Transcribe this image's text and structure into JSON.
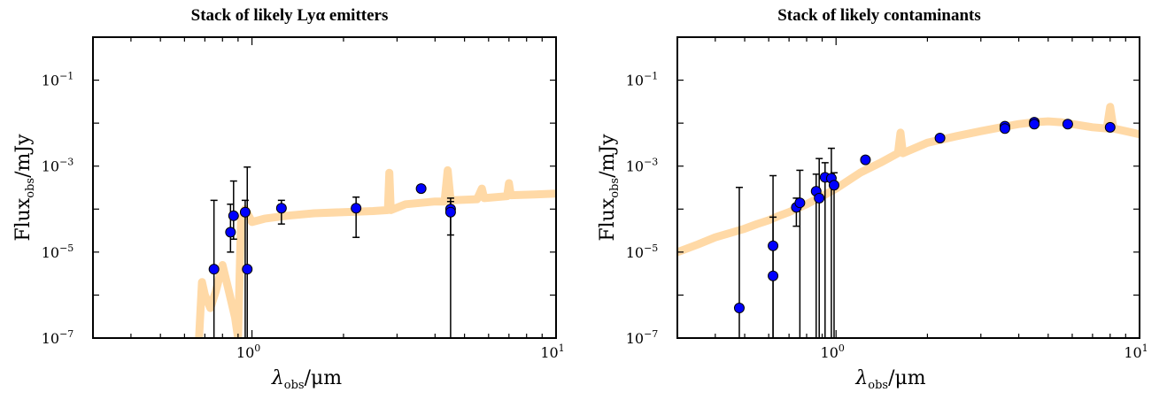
{
  "chart_data": [
    {
      "type": "scatter",
      "title": "Stack of likely Lyα emitters",
      "xlabel": {
        "main": "λ",
        "sub": "obs",
        "tail": "/μm"
      },
      "ylabel": {
        "main": "Flux",
        "sub": "obs",
        "tail": "/mJy"
      },
      "xscale": "log",
      "yscale": "log",
      "xlim": [
        0.3,
        10
      ],
      "ylim": [
        1e-07,
        1
      ],
      "xticks": [
        {
          "value": 1,
          "base": "10",
          "exp": "0"
        },
        {
          "value": 10,
          "base": "10",
          "exp": "1"
        }
      ],
      "yticks": [
        {
          "value": 1e-07,
          "base": "10",
          "exp": "−7"
        },
        {
          "value": 1e-05,
          "base": "10",
          "exp": "−5"
        },
        {
          "value": 0.001,
          "base": "10",
          "exp": "−3"
        },
        {
          "value": 0.1,
          "base": "10",
          "exp": "−1"
        }
      ],
      "series": [
        {
          "kind": "errorbar",
          "color": "#0000ff",
          "points": [
            {
              "x": 0.75,
              "y": 4e-06,
              "ylo": 1e-07,
              "yhi": 0.00016
            },
            {
              "x": 0.85,
              "y": 2.9e-05,
              "ylo": 1e-05,
              "yhi": 0.00013
            },
            {
              "x": 0.87,
              "y": 7e-05,
              "ylo": 2e-05,
              "yhi": 0.00045
            },
            {
              "x": 0.95,
              "y": 8.5e-05,
              "ylo": 1e-07,
              "yhi": 0.00016
            },
            {
              "x": 0.965,
              "y": 4e-06,
              "ylo": 1e-07,
              "yhi": 0.00095
            },
            {
              "x": 1.25,
              "y": 0.000105,
              "ylo": 4.5e-05,
              "yhi": 0.00016
            },
            {
              "x": 2.2,
              "y": 0.000105,
              "ylo": 2.2e-05,
              "yhi": 0.00019
            },
            {
              "x": 3.6,
              "y": 0.0003,
              "ylo": 0.00025,
              "yhi": 0.00036
            },
            {
              "x": 4.5,
              "y": 0.0001,
              "ylo": 1e-07,
              "yhi": 0.00018
            },
            {
              "x": 4.5,
              "y": 8.5e-05,
              "ylo": 2.5e-05,
              "yhi": 0.00015
            }
          ]
        },
        {
          "kind": "model-band",
          "color": "#ffd9a6",
          "points": [
            [
              0.67,
              1e-07
            ],
            [
              0.685,
              2e-06
            ],
            [
              0.7,
              1e-06
            ],
            [
              0.73,
              5e-07
            ],
            [
              0.76,
              1.2e-06
            ],
            [
              0.8,
              5e-06
            ],
            [
              0.84,
              1.2e-06
            ],
            [
              0.88,
              3e-07
            ],
            [
              0.9,
              1e-07
            ],
            [
              0.92,
              5e-05
            ],
            [
              0.95,
              0.0001
            ],
            [
              1.0,
              5e-05
            ],
            [
              1.1,
              6e-05
            ],
            [
              1.3,
              7e-05
            ],
            [
              1.6,
              8e-05
            ],
            [
              2.0,
              8.5e-05
            ],
            [
              2.5,
              9e-05
            ],
            [
              2.8,
              9.5e-05
            ],
            [
              2.83,
              0.0007
            ],
            [
              2.86,
              9.5e-05
            ],
            [
              3.2,
              0.00013
            ],
            [
              3.6,
              0.00014
            ],
            [
              4.0,
              0.00015
            ],
            [
              4.3,
              0.00015
            ],
            [
              4.4,
              0.0008
            ],
            [
              4.5,
              0.00016
            ],
            [
              5.5,
              0.00017
            ],
            [
              5.7,
              0.0003
            ],
            [
              5.8,
              0.00018
            ],
            [
              6.9,
              0.0002
            ],
            [
              7.0,
              0.0004
            ],
            [
              7.1,
              0.00021
            ],
            [
              8.5,
              0.00022
            ],
            [
              10.0,
              0.00023
            ]
          ]
        }
      ]
    },
    {
      "type": "scatter",
      "title": "Stack of likely contaminants",
      "xlabel": {
        "main": "λ",
        "sub": "obs",
        "tail": "/μm"
      },
      "ylabel": {
        "main": "Flux",
        "sub": "obs",
        "tail": "/mJy"
      },
      "xscale": "log",
      "yscale": "log",
      "xlim": [
        0.3,
        10
      ],
      "ylim": [
        1e-07,
        1
      ],
      "xticks": [
        {
          "value": 1,
          "base": "10",
          "exp": "0"
        },
        {
          "value": 10,
          "base": "10",
          "exp": "1"
        }
      ],
      "yticks": [
        {
          "value": 1e-07,
          "base": "10",
          "exp": "−7"
        },
        {
          "value": 1e-05,
          "base": "10",
          "exp": "−5"
        },
        {
          "value": 0.001,
          "base": "10",
          "exp": "−3"
        },
        {
          "value": 0.1,
          "base": "10",
          "exp": "−1"
        }
      ],
      "series": [
        {
          "kind": "errorbar",
          "color": "#0000ff",
          "points": [
            {
              "x": 0.48,
              "y": 5e-07,
              "ylo": 1e-07,
              "yhi": 0.00032
            },
            {
              "x": 0.62,
              "y": 2.8e-06,
              "ylo": 1e-07,
              "yhi": 0.0006
            },
            {
              "x": 0.62,
              "y": 1.4e-05,
              "ylo": 1e-07,
              "yhi": 6.5e-05
            },
            {
              "x": 0.74,
              "y": 0.00011,
              "ylo": 4e-05,
              "yhi": 0.00018
            },
            {
              "x": 0.76,
              "y": 0.00014,
              "ylo": 1e-07,
              "yhi": 0.0008
            },
            {
              "x": 0.86,
              "y": 0.00026,
              "ylo": 1e-07,
              "yhi": 0.00065
            },
            {
              "x": 0.88,
              "y": 0.00018,
              "ylo": 1e-07,
              "yhi": 0.0015
            },
            {
              "x": 0.92,
              "y": 0.00055,
              "ylo": 1e-07,
              "yhi": 0.0012
            },
            {
              "x": 0.965,
              "y": 0.00052,
              "ylo": 1e-07,
              "yhi": 0.0026
            },
            {
              "x": 0.985,
              "y": 0.00036,
              "ylo": 1e-07,
              "yhi": 0.0007
            },
            {
              "x": 1.25,
              "y": 0.0014,
              "ylo": 0.0012,
              "yhi": 0.0016
            },
            {
              "x": 2.2,
              "y": 0.0045,
              "ylo": 0.004,
              "yhi": 0.005
            },
            {
              "x": 3.6,
              "y": 0.0085,
              "ylo": 0.0075,
              "yhi": 0.0095
            },
            {
              "x": 3.6,
              "y": 0.0075,
              "ylo": 0.0065,
              "yhi": 0.0085
            },
            {
              "x": 4.5,
              "y": 0.0105,
              "ylo": 0.0095,
              "yhi": 0.0115
            },
            {
              "x": 4.5,
              "y": 0.0095,
              "ylo": 0.0085,
              "yhi": 0.0105
            },
            {
              "x": 5.8,
              "y": 0.0095,
              "ylo": 0.0085,
              "yhi": 0.0105
            },
            {
              "x": 8.0,
              "y": 0.008,
              "ylo": 0.007,
              "yhi": 0.009
            }
          ]
        },
        {
          "kind": "model-band",
          "color": "#ffd9a6",
          "points": [
            [
              0.3,
              1e-05
            ],
            [
              0.35,
              1.5e-05
            ],
            [
              0.4,
              2.2e-05
            ],
            [
              0.45,
              2.8e-05
            ],
            [
              0.5,
              3.5e-05
            ],
            [
              0.55,
              4.5e-05
            ],
            [
              0.6,
              5.5e-05
            ],
            [
              0.65,
              7e-05
            ],
            [
              0.7,
              8.5e-05
            ],
            [
              0.8,
              0.00013
            ],
            [
              0.9,
              0.0002
            ],
            [
              1.0,
              0.0003
            ],
            [
              1.2,
              0.0007
            ],
            [
              1.4,
              0.0012
            ],
            [
              1.6,
              0.002
            ],
            [
              1.63,
              0.006
            ],
            [
              1.66,
              0.002
            ],
            [
              2.0,
              0.0035
            ],
            [
              2.5,
              0.005
            ],
            [
              3.0,
              0.0065
            ],
            [
              3.5,
              0.008
            ],
            [
              4.0,
              0.0095
            ],
            [
              4.5,
              0.0105
            ],
            [
              5.0,
              0.011
            ],
            [
              5.5,
              0.0105
            ],
            [
              6.0,
              0.0095
            ],
            [
              7.0,
              0.008
            ],
            [
              7.8,
              0.0075
            ],
            [
              8.0,
              0.024
            ],
            [
              8.2,
              0.0075
            ],
            [
              9.0,
              0.0065
            ],
            [
              10.0,
              0.0055
            ]
          ]
        }
      ]
    }
  ]
}
